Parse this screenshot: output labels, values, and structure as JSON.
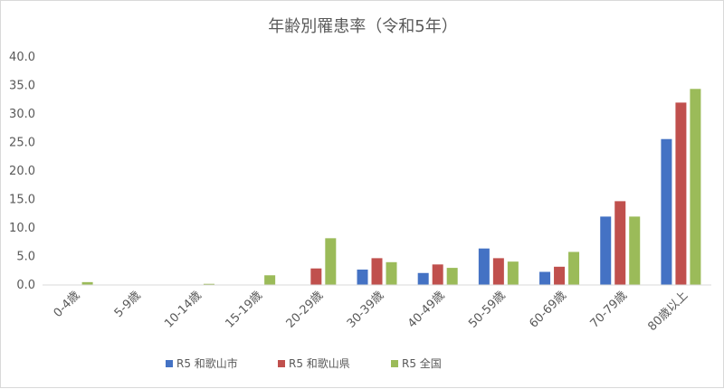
{
  "chart_data": {
    "type": "bar",
    "title": "年齢別罹患率（令和5年）",
    "xlabel": "",
    "ylabel": "",
    "categories": [
      "0-4歳",
      "5-9歳",
      "10-14歳",
      "15-19歳",
      "20-29歳",
      "30-39歳",
      "40-49歳",
      "50-59歳",
      "60-69歳",
      "70-79歳",
      "80歳以上"
    ],
    "y_ticks": [
      "0.0",
      "5.0",
      "10.0",
      "15.0",
      "20.0",
      "25.0",
      "30.0",
      "35.0",
      "40.0"
    ],
    "ylim": [
      0,
      40
    ],
    "grid": false,
    "legend_position": "bottom",
    "series": [
      {
        "name": "R5 和歌山市",
        "color": "#4472c4",
        "values": [
          0,
          0,
          0,
          0,
          0,
          2.7,
          2.1,
          6.4,
          2.3,
          12.0,
          25.6
        ]
      },
      {
        "name": "R5 和歌山県",
        "color": "#c0504d",
        "values": [
          0,
          0,
          0,
          0,
          2.9,
          4.7,
          3.6,
          4.7,
          3.2,
          14.7,
          32.0
        ]
      },
      {
        "name": "R5 全国",
        "color": "#9bbb59",
        "values": [
          0.5,
          0,
          0.2,
          1.7,
          8.2,
          4.0,
          3.0,
          4.1,
          5.8,
          12.0,
          34.4
        ]
      }
    ]
  }
}
